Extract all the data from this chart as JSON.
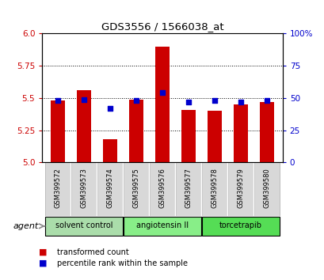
{
  "title": "GDS3556 / 1566038_at",
  "samples": [
    "GSM399572",
    "GSM399573",
    "GSM399574",
    "GSM399575",
    "GSM399576",
    "GSM399577",
    "GSM399578",
    "GSM399579",
    "GSM399580"
  ],
  "transformed_counts": [
    5.48,
    5.56,
    5.18,
    5.49,
    5.9,
    5.41,
    5.4,
    5.45,
    5.47
  ],
  "percentile_ranks": [
    48,
    49,
    42,
    48,
    54,
    47,
    48,
    47,
    48
  ],
  "ylim_left": [
    5.0,
    6.0
  ],
  "ylim_right": [
    0,
    100
  ],
  "yticks_left": [
    5.0,
    5.25,
    5.5,
    5.75,
    6.0
  ],
  "yticks_right": [
    0,
    25,
    50,
    75,
    100
  ],
  "ytick_labels_right": [
    "0",
    "25",
    "50",
    "75",
    "100%"
  ],
  "bar_color": "#cc0000",
  "dot_color": "#0000cc",
  "groups": [
    {
      "label": "solvent control",
      "indices": [
        0,
        1,
        2
      ],
      "color": "#aaddaa"
    },
    {
      "label": "angiotensin II",
      "indices": [
        3,
        4,
        5
      ],
      "color": "#88ee88"
    },
    {
      "label": "torcetrapib",
      "indices": [
        6,
        7,
        8
      ],
      "color": "#55dd55"
    }
  ],
  "agent_label": "agent",
  "legend_items": [
    {
      "label": "transformed count",
      "color": "#cc0000"
    },
    {
      "label": "percentile rank within the sample",
      "color": "#0000cc"
    }
  ],
  "background_color": "#ffffff",
  "plot_bg": "#ffffff",
  "bar_width": 0.55
}
